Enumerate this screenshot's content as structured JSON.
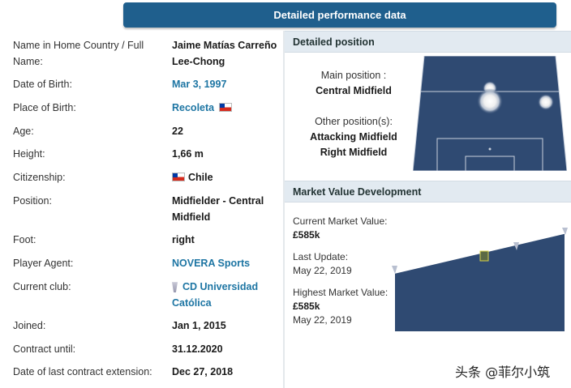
{
  "header": {
    "title": "Detailed performance data"
  },
  "profile": {
    "rows": [
      {
        "label": "Name in Home Country / Full Name:",
        "value": "Jaime Matías Carreño Lee-Chong"
      },
      {
        "label": "Date of Birth:",
        "value": "Mar 3, 1997"
      },
      {
        "label": "Place of Birth:",
        "value": "Recoleta"
      },
      {
        "label": "Age:",
        "value": "22"
      },
      {
        "label": "Height:",
        "value": "1,66 m"
      },
      {
        "label": "Citizenship:",
        "value": "Chile"
      },
      {
        "label": "Position:",
        "value": "Midfielder - Central Midfield"
      },
      {
        "label": "Foot:",
        "value": "right"
      },
      {
        "label": "Player Agent:",
        "value": "NOVERA Sports"
      },
      {
        "label": "Current club:",
        "value": "CD Universidad Católica"
      },
      {
        "label": "Joined:",
        "value": "Jan 1, 2015"
      },
      {
        "label": "Contract until:",
        "value": "31.12.2020"
      },
      {
        "label": "Date of last contract extension:",
        "value": "Dec 27, 2018"
      }
    ]
  },
  "position": {
    "heading": "Detailed position",
    "main_label": "Main position :",
    "main_value": "Central Midfield",
    "other_label": "Other position(s):",
    "other_values": [
      "Attacking Midfield",
      "Right Midfield"
    ]
  },
  "market": {
    "heading": "Market Value Development",
    "current_label": "Current Market Value:",
    "current_value": "£585k",
    "update_label": "Last Update:",
    "update_date": "May 22, 2019",
    "highest_label": "Highest Market Value:",
    "highest_value": "£585k",
    "highest_date": "May 22, 2019"
  },
  "watermark": "头条 @菲尔小筑",
  "colors": {
    "accent": "#1f5f8d",
    "link": "#1d75a3",
    "pitch": "#2f4a72",
    "header_bg": "#e2eaf1"
  }
}
